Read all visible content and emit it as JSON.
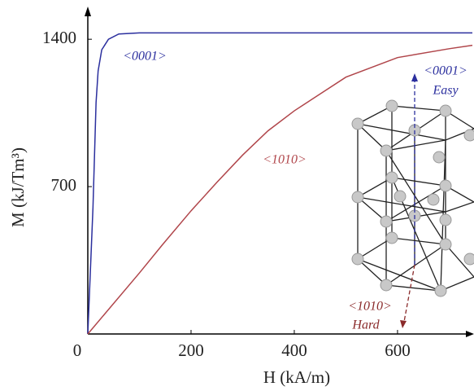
{
  "chart_data": {
    "type": "line",
    "x_label": "H (kA/m)",
    "y_label": "M (kJ/Tm³)",
    "xlim": [
      0,
      745
    ],
    "ylim": [
      0,
      1540
    ],
    "xticks": [
      0,
      200,
      400,
      600
    ],
    "yticks": [
      1400,
      700
    ],
    "series": [
      {
        "name": "<0001>",
        "color": "#2b2f9e",
        "x": [
          0,
          10,
          16,
          20,
          27,
          40,
          60,
          100,
          200,
          400,
          600,
          745
        ],
        "values": [
          0,
          600,
          1100,
          1250,
          1350,
          1400,
          1425,
          1430,
          1430,
          1430,
          1430,
          1430
        ]
      },
      {
        "name": "<1010>",
        "color": "#b0454a",
        "x": [
          0,
          100,
          145,
          200,
          250,
          300,
          349,
          400,
          500,
          600,
          700,
          745
        ],
        "values": [
          0,
          290,
          425,
          585,
          720,
          850,
          965,
          1060,
          1220,
          1313,
          1355,
          1371
        ]
      }
    ],
    "inset": {
      "easy_axis": "<0001>",
      "easy_label": "Easy",
      "hard_axis": "<1010>",
      "hard_label": "Hard"
    }
  }
}
